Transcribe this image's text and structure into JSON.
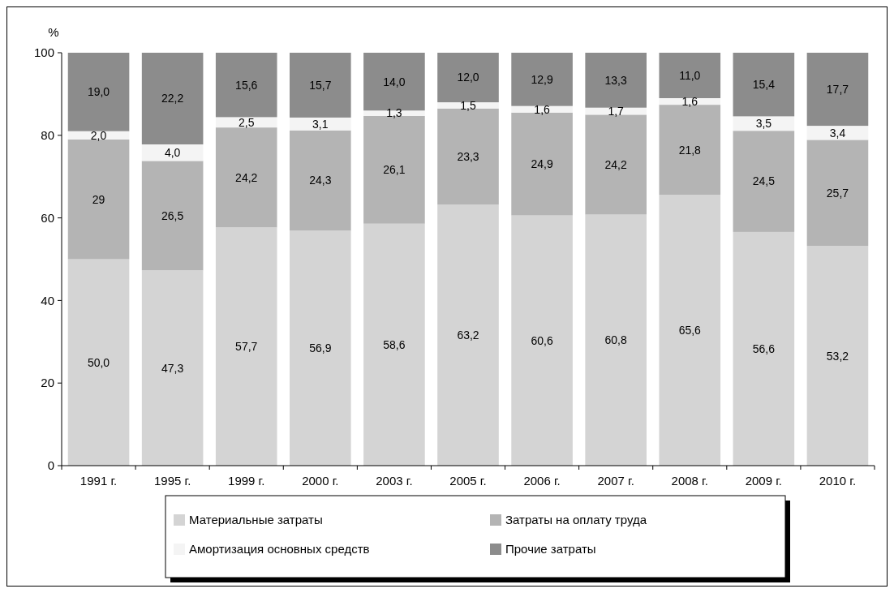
{
  "chart_data": {
    "type": "bar",
    "stacked": true,
    "ylabel": "%",
    "categories": [
      "1991 г.",
      "1995 г.",
      "1999 г.",
      "2000 г.",
      "2003 г.",
      "2005 г.",
      "2006 г.",
      "2007 г.",
      "2008 г.",
      "2009 г.",
      "2010 г."
    ],
    "ylim": [
      0,
      100
    ],
    "yticks": [
      0,
      20,
      40,
      60,
      80,
      100
    ],
    "grid": false,
    "legend": "bottom",
    "series": [
      {
        "name": "Материальные затраты",
        "color": "#d4d4d4",
        "values": [
          50.0,
          47.3,
          57.7,
          56.9,
          58.6,
          63.2,
          60.6,
          60.8,
          65.6,
          56.6,
          53.2
        ],
        "value_labels": [
          "50,0",
          "47,3",
          "57,7",
          "56,9",
          "58,6",
          "63,2",
          "60,6",
          "60,8",
          "65,6",
          "56,6",
          "53,2"
        ]
      },
      {
        "name": "Затраты на оплату труда",
        "color": "#b4b4b4",
        "values": [
          29,
          26.5,
          24.2,
          24.3,
          26.1,
          23.3,
          24.9,
          24.2,
          21.8,
          24.5,
          25.7
        ],
        "value_labels": [
          "29",
          "26,5",
          "24,2",
          "24,3",
          "26,1",
          "23,3",
          "24,9",
          "24,2",
          "21,8",
          "24,5",
          "25,7"
        ]
      },
      {
        "name": "Амортизация основных средств",
        "color": "#f4f4f4",
        "values": [
          2.0,
          4.0,
          2.5,
          3.1,
          1.3,
          1.5,
          1.6,
          1.7,
          1.6,
          3.5,
          3.4
        ],
        "value_labels": [
          "2,0",
          "4,0",
          "2,5",
          "3,1",
          "1,3",
          "1,5",
          "1,6",
          "1,7",
          "1,6",
          "3,5",
          "3,4"
        ]
      },
      {
        "name": "Прочие затраты",
        "color": "#8c8c8c",
        "values": [
          19.0,
          22.2,
          15.6,
          15.7,
          14.0,
          12.0,
          12.9,
          13.3,
          11.0,
          15.4,
          17.7
        ],
        "value_labels": [
          "19,0",
          "22,2",
          "15,6",
          "15,7",
          "14,0",
          "12,0",
          "12,9",
          "13,3",
          "11,0",
          "15,4",
          "17,7"
        ]
      }
    ]
  }
}
